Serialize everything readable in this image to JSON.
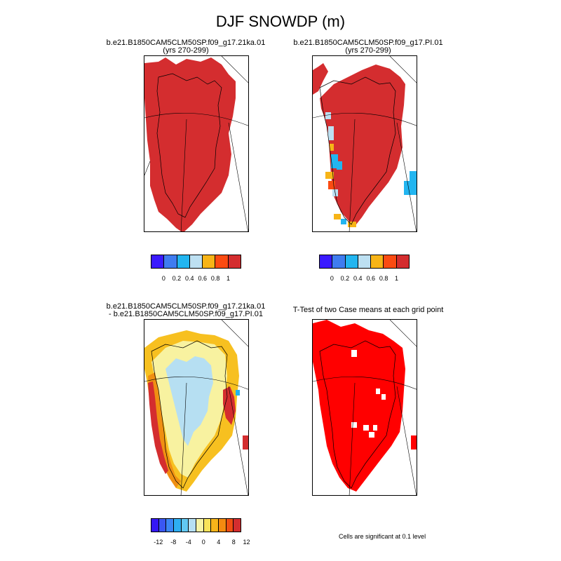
{
  "title": "DJF SNOWDP (m)",
  "panels": [
    {
      "line1": "b.e21.B1850CAM5CLM50SP.f09_g17.21ka.01",
      "line2": "(yrs 270-299)"
    },
    {
      "line1": "b.e21.B1850CAM5CLM50SP.f09_g17.PI.01",
      "line2": "(yrs 270-299)"
    },
    {
      "line1": "b.e21.B1850CAM5CLM50SP.f09_g17.21ka.01",
      "line2": "- b.e21.B1850CAM5CLM50SP.f09_g17.PI.01"
    },
    {
      "line1": "T-Test of two Case means at each grid point",
      "line2": ""
    }
  ],
  "colorbar_top": {
    "colors": [
      "#3a1aff",
      "#3f7cf0",
      "#22b5f0",
      "#bde0f2",
      "#f7b417",
      "#fb4b12",
      "#d42d2f"
    ],
    "tick_labels": [
      "0",
      "0.2",
      "0.4",
      "0.6",
      "0.8",
      "1"
    ]
  },
  "colorbar_diff": {
    "colors": [
      "#3418f5",
      "#3a57f2",
      "#3b86f5",
      "#2eaef2",
      "#62c8f2",
      "#b6dff2",
      "#f6f3a6",
      "#f8e35a",
      "#f7b41a",
      "#f48a10",
      "#f04e12",
      "#d42d2f"
    ],
    "tick_labels": [
      "-12",
      "-8",
      "-4",
      "0",
      "4",
      "8",
      "12"
    ]
  },
  "significance_note": "Cells are significant at 0.1 level",
  "map_colors": {
    "high": "#d42d2f",
    "significant": "#ff0000",
    "light_blue": "#b6dff2",
    "pale_yellow": "#f8f2a0",
    "yellow": "#f7c020",
    "orange": "#f08f12",
    "blue": "#22b5f0"
  }
}
